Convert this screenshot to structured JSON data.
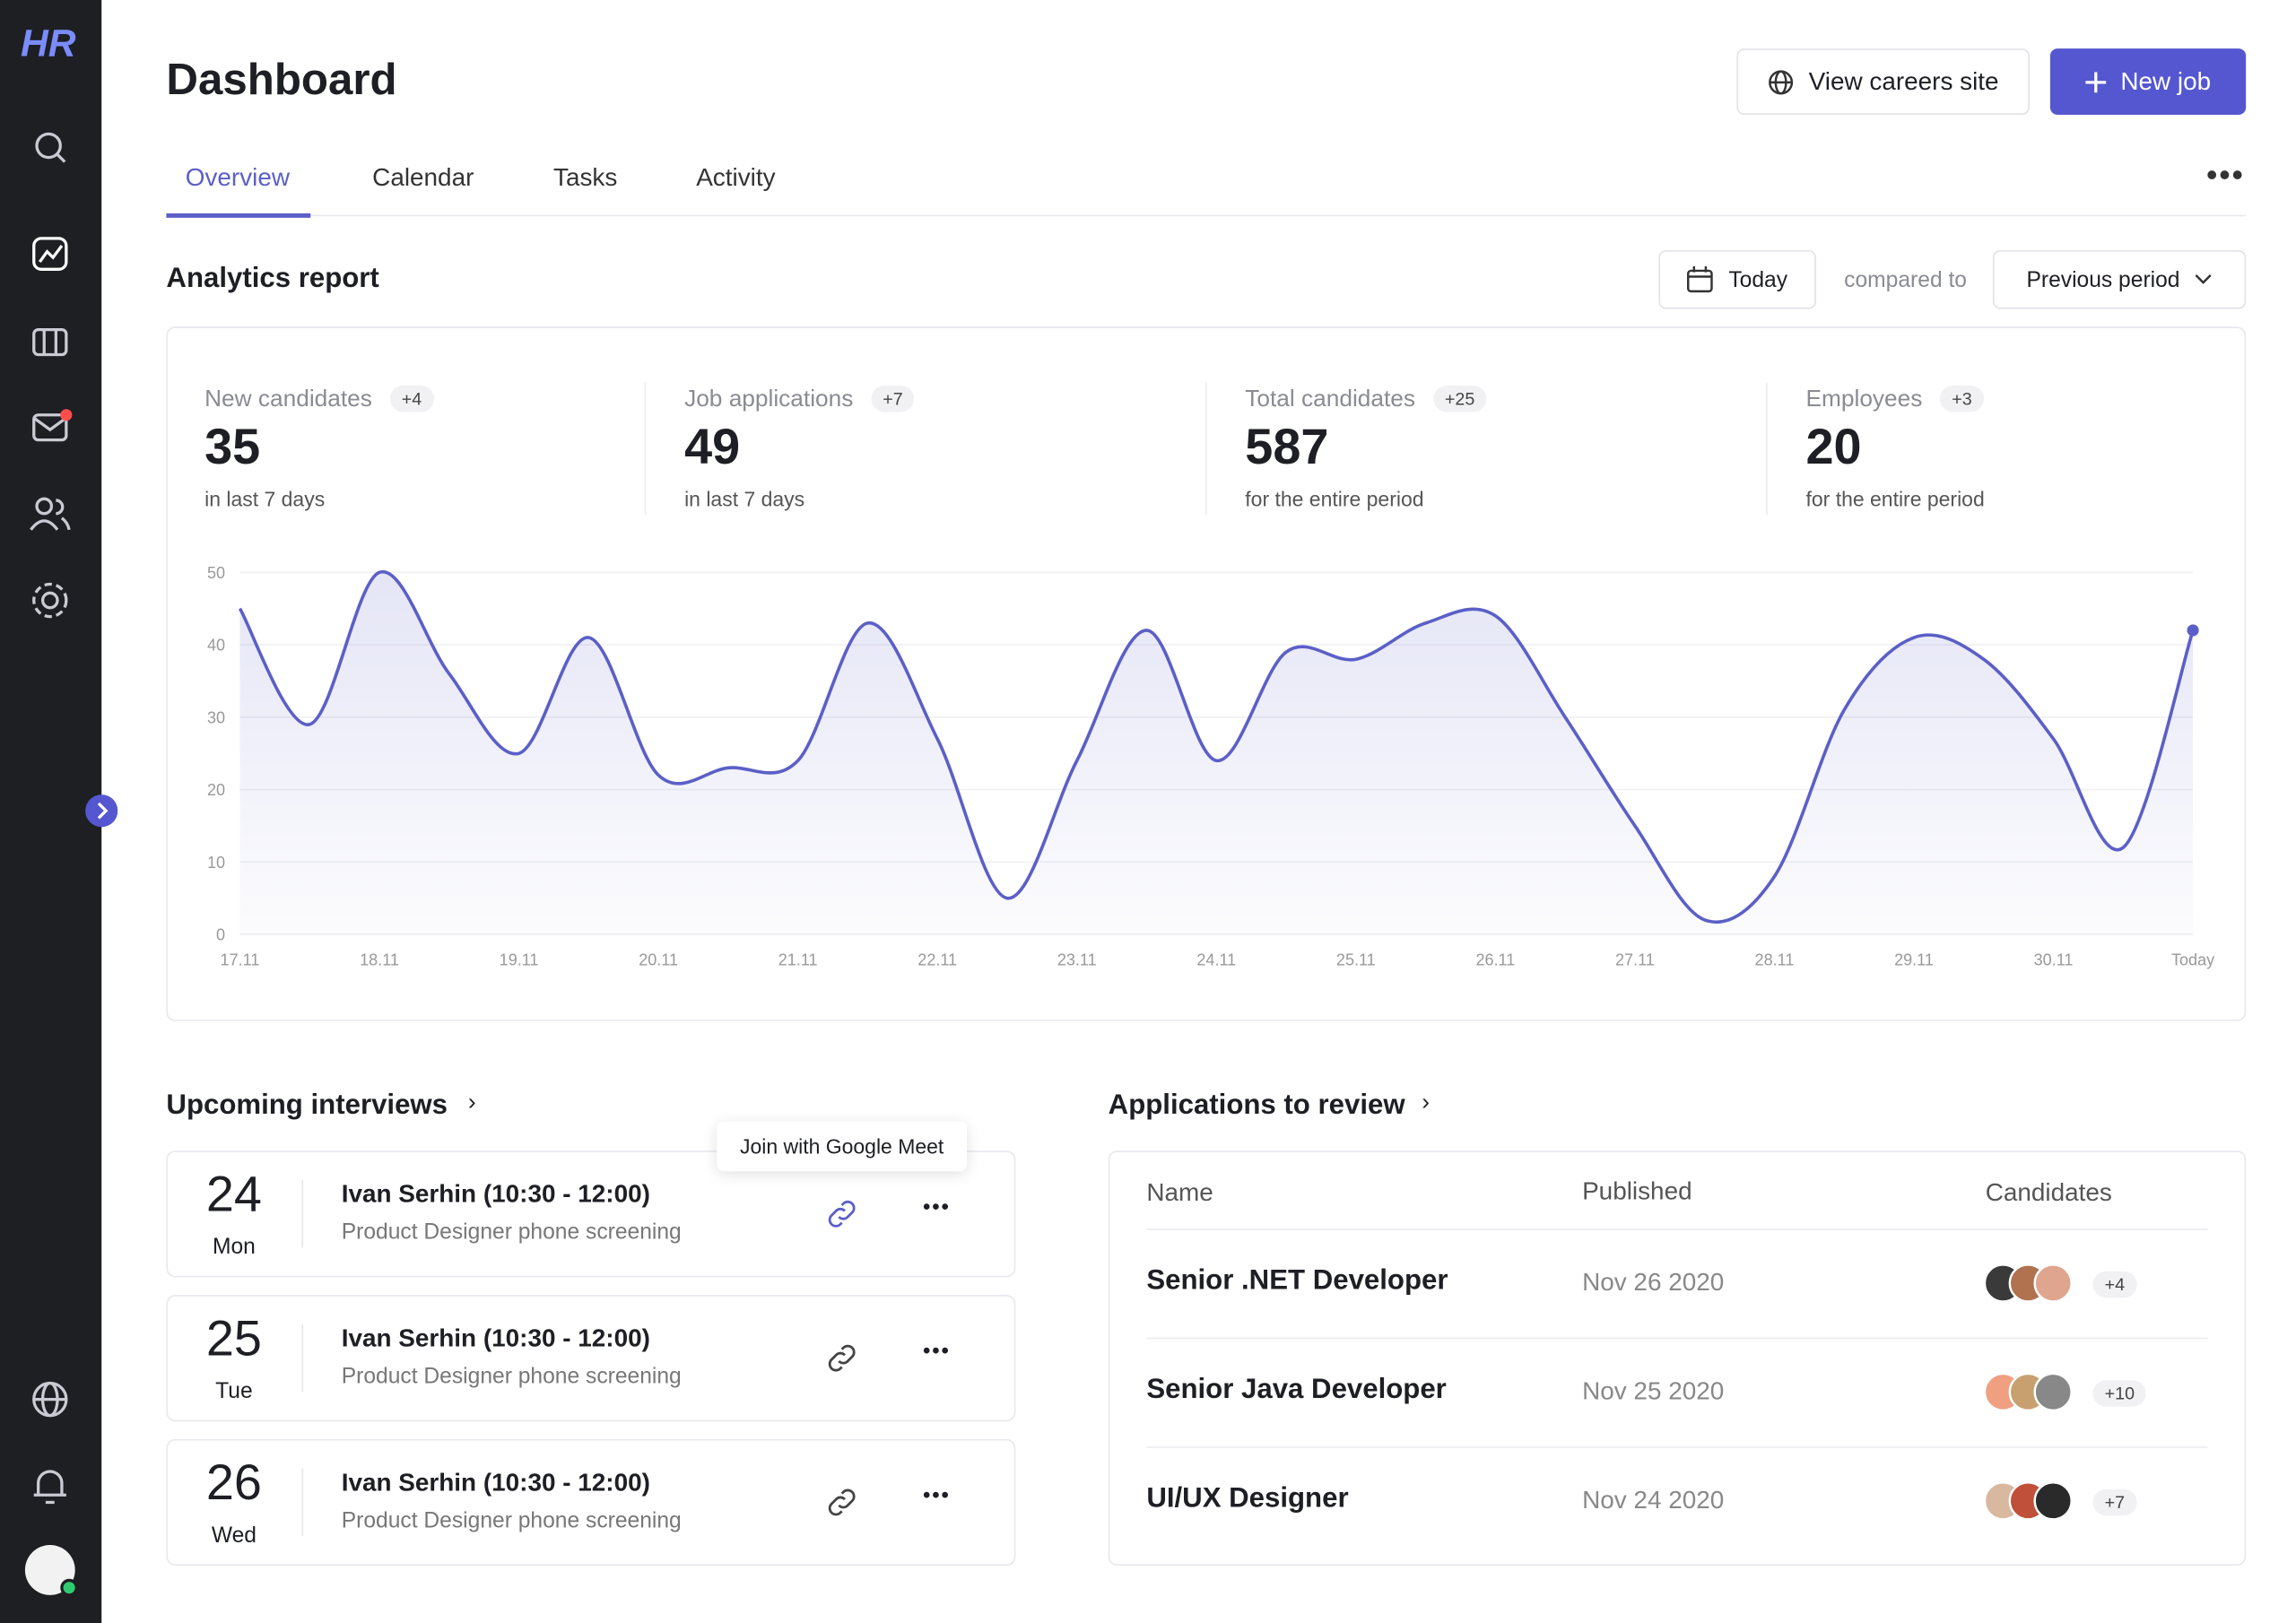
{
  "brand": "HR",
  "header": {
    "title": "Dashboard",
    "buttons": [
      "View careers site",
      "New job"
    ]
  },
  "tabs": [
    "Overview",
    "Calendar",
    "Tasks",
    "Activity"
  ],
  "analytics": {
    "title": "Analytics report",
    "date": "Today",
    "compared": "compared to",
    "period": "Previous period",
    "stats": [
      {
        "label": "New candidates",
        "delta": "+4",
        "value": 35,
        "note": "in last 7 days"
      },
      {
        "label": "Job applications",
        "delta": "+7",
        "value": 49,
        "note": "in last 7 days"
      },
      {
        "label": "Total candidates",
        "delta": "+25",
        "value": 587,
        "note": "for the entire period"
      },
      {
        "label": "Employees",
        "delta": "+3",
        "value": 20,
        "note": "for the entire period"
      }
    ]
  },
  "chart_data": {
    "type": "line",
    "categories": [
      "17.11",
      null,
      "18.11",
      null,
      "19.11",
      null,
      "20.11",
      null,
      "21.11",
      null,
      "22.11",
      null,
      "23.11",
      null,
      "24.11",
      null,
      "25.11",
      null,
      "26.11",
      null,
      "27.11",
      null,
      "28.11",
      null,
      "29.11",
      null,
      "30.11",
      null,
      "Today"
    ],
    "values": [
      45,
      29,
      50,
      36,
      25,
      41,
      22,
      23,
      24,
      43,
      27,
      5,
      24,
      42,
      24,
      39,
      38,
      43,
      44,
      30,
      15,
      2,
      8,
      31,
      41,
      38,
      27,
      12,
      42
    ],
    "ylim": [
      0,
      50
    ],
    "yticks": [
      0,
      10,
      20,
      30,
      40,
      50
    ],
    "color": "#5b5fc7",
    "grid": true
  },
  "interviews": {
    "title": "Upcoming interviews",
    "tooltip": "Join with Google Meet",
    "items": [
      {
        "day": 24,
        "weekday": "Mon",
        "name": "Ivan Serhin (10:30 - 12:00)",
        "desc": "Product Designer phone screening"
      },
      {
        "day": 25,
        "weekday": "Tue",
        "name": "Ivan Serhin (10:30 - 12:00)",
        "desc": "Product Designer phone screening"
      },
      {
        "day": 26,
        "weekday": "Wed",
        "name": "Ivan Serhin (10:30 - 12:00)",
        "desc": "Product Designer phone screening"
      }
    ]
  },
  "applications": {
    "title": "Applications to review",
    "columns": [
      "Name",
      "Published",
      "Candidates"
    ],
    "rows": [
      {
        "name": "Senior .NET Developer",
        "published": "Nov 26 2020",
        "extra": "+4"
      },
      {
        "name": "Senior Java Developer",
        "published": "Nov 25 2020",
        "extra": "+10"
      },
      {
        "name": "UI/UX Designer",
        "published": "Nov 24 2020",
        "extra": "+7"
      }
    ]
  }
}
